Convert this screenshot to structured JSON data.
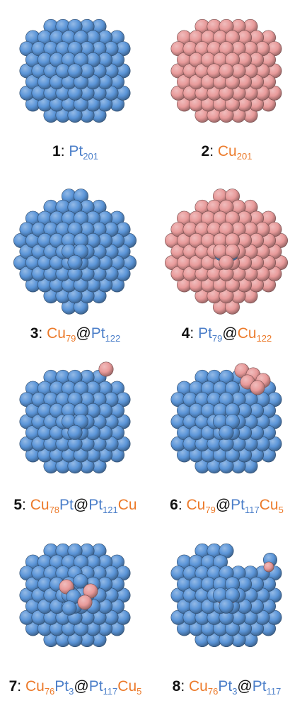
{
  "colors": {
    "pt": "#5b95d8",
    "cu": "#e89a9a",
    "pt_text": "#4c7fc9",
    "cu_text": "#ec7a2a"
  },
  "panels": [
    {
      "id": 1,
      "caption": [
        {
          "t": "1",
          "c": "num"
        },
        {
          "t": ": ",
          "c": "plain"
        },
        {
          "t": "Pt",
          "c": "pt"
        },
        {
          "t": "201",
          "c": "pt",
          "sub": true
        }
      ],
      "base": "pt",
      "inner": [],
      "defect": []
    },
    {
      "id": 2,
      "caption": [
        {
          "t": "2",
          "c": "num"
        },
        {
          "t": ": ",
          "c": "plain"
        },
        {
          "t": "Cu",
          "c": "cu"
        },
        {
          "t": "201",
          "c": "cu",
          "sub": true
        }
      ],
      "base": "cu",
      "inner": [],
      "defect": []
    },
    {
      "id": 3,
      "caption": [
        {
          "t": "3",
          "c": "num"
        },
        {
          "t": ": ",
          "c": "plain"
        },
        {
          "t": "Cu",
          "c": "cu"
        },
        {
          "t": "79",
          "c": "cu",
          "sub": true
        },
        {
          "t": "@",
          "c": "at"
        },
        {
          "t": "Pt",
          "c": "pt"
        },
        {
          "t": "122",
          "c": "pt",
          "sub": true
        }
      ],
      "base": "pt",
      "inner": "cu-gaps",
      "defect": []
    },
    {
      "id": 4,
      "caption": [
        {
          "t": "4",
          "c": "num"
        },
        {
          "t": ": ",
          "c": "plain"
        },
        {
          "t": "Pt",
          "c": "pt"
        },
        {
          "t": "79",
          "c": "pt",
          "sub": true
        },
        {
          "t": "@",
          "c": "at"
        },
        {
          "t": "Cu",
          "c": "cu"
        },
        {
          "t": "122",
          "c": "cu",
          "sub": true
        }
      ],
      "base": "cu",
      "inner": "pt-gaps",
      "defect": []
    },
    {
      "id": 5,
      "caption": [
        {
          "t": "5",
          "c": "num"
        },
        {
          "t": ": ",
          "c": "plain"
        },
        {
          "t": "Cu",
          "c": "cu"
        },
        {
          "t": "78",
          "c": "cu",
          "sub": true
        },
        {
          "t": "Pt",
          "c": "pt"
        },
        {
          "t": "@",
          "c": "at"
        },
        {
          "t": "Pt",
          "c": "pt"
        },
        {
          "t": "121",
          "c": "pt",
          "sub": true
        },
        {
          "t": "Cu",
          "c": "cu"
        }
      ],
      "base": "pt",
      "inner": "cu-gaps",
      "defect": "single-cu"
    },
    {
      "id": 6,
      "caption": [
        {
          "t": "6",
          "c": "num"
        },
        {
          "t": ": ",
          "c": "plain"
        },
        {
          "t": "Cu",
          "c": "cu"
        },
        {
          "t": "79",
          "c": "cu",
          "sub": true
        },
        {
          "t": "@",
          "c": "at"
        },
        {
          "t": "Pt",
          "c": "pt"
        },
        {
          "t": "117",
          "c": "pt",
          "sub": true
        },
        {
          "t": "Cu",
          "c": "cu"
        },
        {
          "t": "5",
          "c": "cu",
          "sub": true
        }
      ],
      "base": "pt",
      "inner": "cu-gaps",
      "defect": "cu-cluster"
    },
    {
      "id": 7,
      "caption": [
        {
          "t": "7",
          "c": "num"
        },
        {
          "t": ": ",
          "c": "plain"
        },
        {
          "t": "Cu",
          "c": "cu"
        },
        {
          "t": "76",
          "c": "cu",
          "sub": true
        },
        {
          "t": "Pt",
          "c": "pt"
        },
        {
          "t": "3",
          "c": "pt",
          "sub": true
        },
        {
          "t": "@",
          "c": "at"
        },
        {
          "t": "Pt",
          "c": "pt"
        },
        {
          "t": "117",
          "c": "pt",
          "sub": true
        },
        {
          "t": "Cu",
          "c": "cu"
        },
        {
          "t": "5",
          "c": "cu",
          "sub": true
        }
      ],
      "base": "pt",
      "inner": "cu-gaps",
      "defect": "hole-mixed"
    },
    {
      "id": 8,
      "caption": [
        {
          "t": "8",
          "c": "num"
        },
        {
          "t": ": ",
          "c": "plain"
        },
        {
          "t": "Cu",
          "c": "cu"
        },
        {
          "t": "76",
          "c": "cu",
          "sub": true
        },
        {
          "t": "Pt",
          "c": "pt"
        },
        {
          "t": "3",
          "c": "pt",
          "sub": true
        },
        {
          "t": "@",
          "c": "at"
        },
        {
          "t": "Pt",
          "c": "pt"
        },
        {
          "t": "117",
          "c": "pt",
          "sub": true
        }
      ],
      "base": "pt",
      "inner": "cu-gaps",
      "defect": "open-top"
    }
  ]
}
